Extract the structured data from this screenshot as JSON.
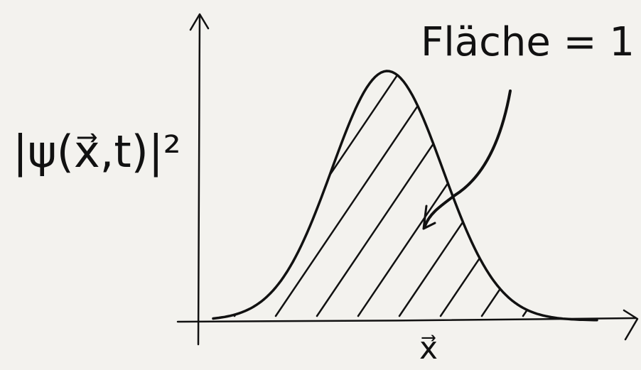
{
  "diagram": {
    "y_label": "|ψ(x⃗,t)|²",
    "x_label": "x⃗",
    "annotation": "Fläche = 1"
  }
}
